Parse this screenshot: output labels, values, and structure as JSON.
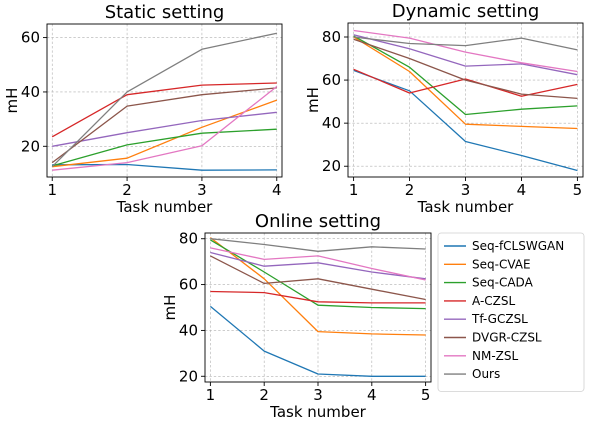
{
  "chart_data": [
    {
      "type": "line",
      "title": "Static setting",
      "xlabel": "Task number",
      "ylabel": "mH",
      "x": [
        1,
        2,
        3,
        4
      ],
      "xlim": [
        0.93,
        4.07
      ],
      "ylim": [
        8.7,
        65
      ],
      "xticks": [
        1,
        2,
        3,
        4
      ],
      "yticks": [
        20,
        40,
        60
      ],
      "grid": true,
      "series": [
        {
          "name": "Seq-fCLSWGAN",
          "values": [
            13.2,
            13.3,
            11.2,
            11.3
          ]
        },
        {
          "name": "Seq-CVAE",
          "values": [
            12.5,
            15.6,
            27.0,
            37.0
          ]
        },
        {
          "name": "Seq-CADA",
          "values": [
            12.8,
            20.5,
            24.8,
            26.3
          ]
        },
        {
          "name": "A-CZSL",
          "values": [
            23.5,
            39.0,
            42.5,
            43.3
          ]
        },
        {
          "name": "Tf-GCZSL",
          "values": [
            20.0,
            25.0,
            29.5,
            32.5
          ]
        },
        {
          "name": "DVGR-CZSL",
          "values": [
            14.0,
            34.8,
            39.0,
            41.5
          ]
        },
        {
          "name": "NM-ZSL",
          "values": [
            11.2,
            14.0,
            20.2,
            42.0
          ]
        },
        {
          "name": "Ours",
          "values": [
            12.5,
            40.0,
            55.7,
            61.6
          ]
        }
      ]
    },
    {
      "type": "line",
      "title": "Dynamic setting",
      "xlabel": "Task number",
      "ylabel": "mH",
      "x": [
        1,
        2,
        3,
        4,
        5
      ],
      "xlim": [
        0.9,
        5.1
      ],
      "ylim": [
        15,
        86.5
      ],
      "xticks": [
        1,
        2,
        3,
        4,
        5
      ],
      "yticks": [
        20,
        40,
        60,
        80
      ],
      "grid": true,
      "series": [
        {
          "name": "Seq-fCLSWGAN",
          "values": [
            64.5,
            55.0,
            31.5,
            25.0,
            18.0
          ]
        },
        {
          "name": "Seq-CVAE",
          "values": [
            80.0,
            64.0,
            39.5,
            38.5,
            37.5
          ]
        },
        {
          "name": "Seq-CADA",
          "values": [
            80.5,
            66.0,
            44.0,
            46.5,
            48.0
          ]
        },
        {
          "name": "A-CZSL",
          "values": [
            65.0,
            54.0,
            60.5,
            52.5,
            58.0
          ]
        },
        {
          "name": "Tf-GCZSL",
          "values": [
            81.0,
            74.5,
            66.5,
            67.5,
            62.5
          ]
        },
        {
          "name": "DVGR-CZSL",
          "values": [
            79.0,
            70.0,
            60.0,
            53.5,
            51.5
          ]
        },
        {
          "name": "NM-ZSL",
          "values": [
            83.0,
            79.5,
            73.0,
            68.0,
            64.0
          ]
        },
        {
          "name": "Ours",
          "values": [
            80.0,
            77.0,
            76.0,
            79.5,
            74.0
          ]
        }
      ]
    },
    {
      "type": "line",
      "title": "Online setting",
      "xlabel": "Task number",
      "ylabel": "mH",
      "x": [
        1,
        2,
        3,
        4,
        5
      ],
      "xlim": [
        0.9,
        5.1
      ],
      "ylim": [
        17.5,
        82.5
      ],
      "xticks": [
        1,
        2,
        3,
        4,
        5
      ],
      "yticks": [
        20,
        40,
        60,
        80
      ],
      "grid": true,
      "series": [
        {
          "name": "Seq-fCLSWGAN",
          "values": [
            50.5,
            31.0,
            21.0,
            20.0,
            20.0
          ]
        },
        {
          "name": "Seq-CVAE",
          "values": [
            80.5,
            62.5,
            39.5,
            38.5,
            38.0
          ]
        },
        {
          "name": "Seq-CADA",
          "values": [
            79.5,
            65.5,
            51.0,
            50.0,
            49.5
          ]
        },
        {
          "name": "A-CZSL",
          "values": [
            57.0,
            56.5,
            52.5,
            52.0,
            52.0
          ]
        },
        {
          "name": "Tf-GCZSL",
          "values": [
            74.0,
            68.0,
            69.5,
            65.5,
            62.5
          ]
        },
        {
          "name": "DVGR-CZSL",
          "values": [
            72.5,
            60.5,
            62.5,
            58.0,
            53.5
          ]
        },
        {
          "name": "NM-ZSL",
          "values": [
            76.0,
            71.0,
            72.5,
            67.0,
            62.0
          ]
        },
        {
          "name": "Ours",
          "values": [
            80.0,
            77.5,
            74.5,
            76.5,
            75.5
          ]
        }
      ]
    }
  ],
  "legend": {
    "placement": "right of Online setting",
    "entries": [
      {
        "label": "Seq-fCLSWGAN",
        "color": "#1f77b4"
      },
      {
        "label": "Seq-CVAE",
        "color": "#ff7f0e"
      },
      {
        "label": "Seq-CADA",
        "color": "#2ca02c"
      },
      {
        "label": "A-CZSL",
        "color": "#d62728"
      },
      {
        "label": "Tf-GCZSL",
        "color": "#9467bd"
      },
      {
        "label": "DVGR-CZSL",
        "color": "#8c564b"
      },
      {
        "label": "NM-ZSL",
        "color": "#e377c2"
      },
      {
        "label": "Ours",
        "color": "#7f7f7f"
      }
    ]
  }
}
